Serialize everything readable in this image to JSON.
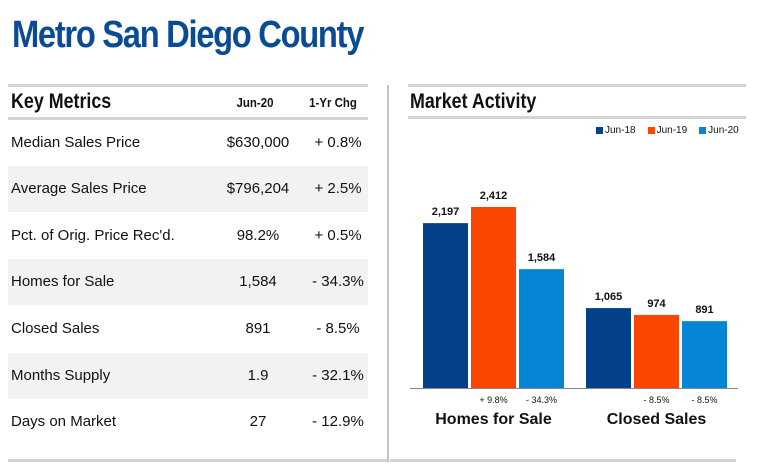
{
  "page_title": "Metro San Diego County",
  "key_metrics": {
    "title": "Key Metrics",
    "col_current": "Jun-20",
    "col_change": "1-Yr Chg",
    "rows": [
      {
        "label": "Median Sales Price",
        "value": "$630,000",
        "change": "+ 0.8%"
      },
      {
        "label": "Average Sales Price",
        "value": "$796,204",
        "change": "+ 2.5%"
      },
      {
        "label": "Pct. of Orig. Price Rec'd.",
        "value": "98.2%",
        "change": "+ 0.5%"
      },
      {
        "label": "Homes for Sale",
        "value": "1,584",
        "change": "- 34.3%"
      },
      {
        "label": "Closed Sales",
        "value": "891",
        "change": "- 8.5%"
      },
      {
        "label": "Months Supply",
        "value": "1.9",
        "change": "- 32.1%"
      },
      {
        "label": "Days on Market",
        "value": "27",
        "change": "- 12.9%"
      }
    ]
  },
  "market_activity": {
    "title": "Market Activity"
  },
  "chart_data": {
    "type": "bar",
    "title": "Market Activity",
    "categories": [
      "Homes for Sale",
      "Closed Sales"
    ],
    "series": [
      {
        "name": "Jun-18",
        "color": "#024187",
        "values": [
          2197,
          1065
        ],
        "value_labels": [
          "2,197",
          "1,065"
        ],
        "change_labels": [
          "",
          ""
        ]
      },
      {
        "name": "Jun-19",
        "color": "#fa4600",
        "values": [
          2412,
          974
        ],
        "value_labels": [
          "2,412",
          "974"
        ],
        "change_labels": [
          "+ 9.8%",
          "- 8.5%"
        ]
      },
      {
        "name": "Jun-20",
        "color": "#0585d4",
        "values": [
          1584,
          891
        ],
        "value_labels": [
          "1,584",
          "891"
        ],
        "change_labels": [
          "- 34.3%",
          "- 8.5%"
        ]
      }
    ],
    "legend_position": "top-right",
    "ylim": [
      0,
      2412
    ],
    "grid": false,
    "xlabel": "",
    "ylabel": ""
  }
}
